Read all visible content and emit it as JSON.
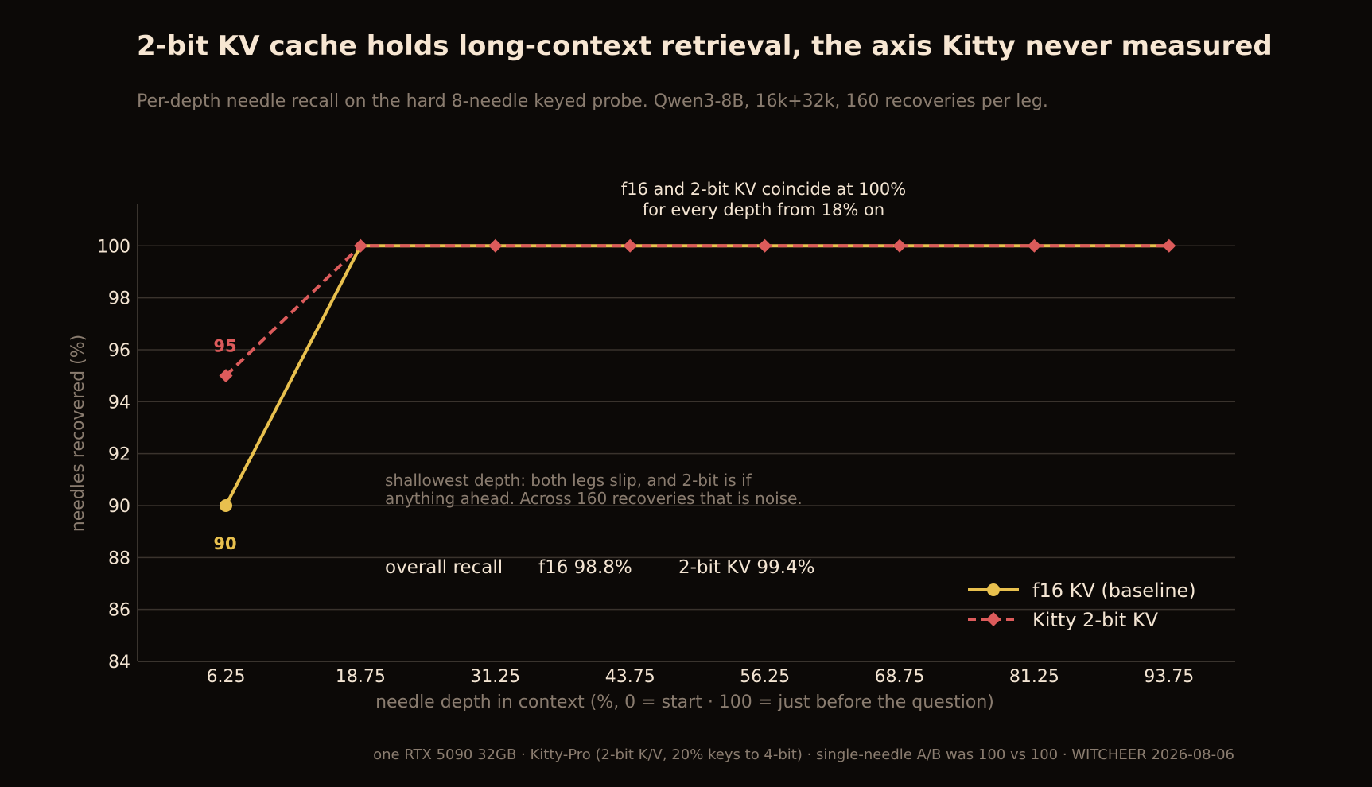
{
  "title": "2-bit KV cache holds long-context retrieval, the axis Kitty never measured",
  "subtitle": "Per-depth needle recall on the hard 8-needle keyed probe. Qwen3-8B, 16k+32k, 160 recoveries per leg.",
  "footer": "one RTX 5090 32GB · Kitty-Pro (2-bit K/V, 20% keys to 4-bit) · single-needle A/B was 100 vs 100 · WITCHEER 2026-08-06",
  "annotations": {
    "top_line1": "f16 and 2-bit KV coincide at 100%",
    "top_line2": "for every depth from 18% on",
    "mid_line1": "shallowest depth: both legs slip, and 2-bit is if",
    "mid_line2": "anything ahead. Across 160 recoveries that is noise.",
    "overall_label": "overall recall",
    "overall_f16": "f16  98.8%",
    "overall_kv2": "2-bit KV  99.4%"
  },
  "colors": {
    "background": "#0c0907",
    "f16": "#e8c04e",
    "kitty": "#dc5b5b"
  },
  "chart_data": {
    "type": "line",
    "title": "2-bit KV cache holds long-context retrieval, the axis Kitty never measured",
    "xlabel": "needle depth in context  (%, 0 = start · 100 = just before the question)",
    "ylabel": "needles recovered  (%)",
    "categories": [
      "6.25",
      "18.75",
      "31.25",
      "43.75",
      "56.25",
      "68.75",
      "81.25",
      "93.75"
    ],
    "ylim": [
      84,
      101.6
    ],
    "yticks": [
      84,
      86,
      88,
      90,
      92,
      94,
      96,
      98,
      100
    ],
    "grid": "horizontal",
    "legend_position": "bottom-right",
    "series": [
      {
        "name": "f16 KV (baseline)",
        "x": [
          6.25,
          18.75,
          31.25,
          43.75,
          56.25,
          68.75,
          81.25,
          93.75
        ],
        "values": [
          90,
          100,
          100,
          100,
          100,
          100,
          100,
          100
        ],
        "marker": "circle",
        "style": "solid",
        "labeled_point": {
          "index": 0,
          "text": "90"
        }
      },
      {
        "name": "Kitty 2-bit KV",
        "x": [
          6.25,
          18.75,
          31.25,
          43.75,
          56.25,
          68.75,
          81.25,
          93.75
        ],
        "values": [
          95,
          100,
          100,
          100,
          100,
          100,
          100,
          100
        ],
        "marker": "diamond",
        "style": "dashed",
        "labeled_point": {
          "index": 0,
          "text": "95"
        }
      }
    ]
  }
}
